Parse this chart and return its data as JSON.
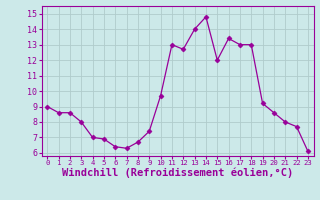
{
  "x": [
    0,
    1,
    2,
    3,
    4,
    5,
    6,
    7,
    8,
    9,
    10,
    11,
    12,
    13,
    14,
    15,
    16,
    17,
    18,
    19,
    20,
    21,
    22,
    23
  ],
  "y": [
    9.0,
    8.6,
    8.6,
    8.0,
    7.0,
    6.9,
    6.4,
    6.3,
    6.7,
    7.4,
    9.7,
    13.0,
    12.7,
    14.0,
    14.8,
    12.0,
    13.4,
    13.0,
    13.0,
    9.2,
    8.6,
    8.0,
    7.7,
    6.1
  ],
  "line_color": "#990099",
  "marker": "D",
  "marker_size": 2.5,
  "background_color": "#cce9e9",
  "grid_color": "#b0cccc",
  "xlabel": "Windchill (Refroidissement éolien,°C)",
  "xlabel_color": "#990099",
  "ylim": [
    5.8,
    15.5
  ],
  "xlim": [
    -0.5,
    23.5
  ],
  "yticks": [
    6,
    7,
    8,
    9,
    10,
    11,
    12,
    13,
    14,
    15
  ],
  "xticks": [
    0,
    1,
    2,
    3,
    4,
    5,
    6,
    7,
    8,
    9,
    10,
    11,
    12,
    13,
    14,
    15,
    16,
    17,
    18,
    19,
    20,
    21,
    22,
    23
  ],
  "tick_color": "#990099",
  "tick_fontsize": 6,
  "xlabel_fontsize": 7.5,
  "spine_color": "#990099"
}
